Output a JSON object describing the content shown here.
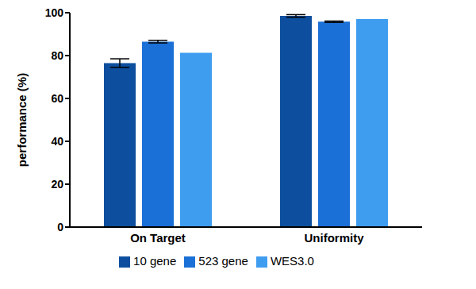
{
  "chart_data": {
    "type": "bar",
    "y_label": "performance  (%)",
    "categories": [
      "On Target",
      "Uniformity"
    ],
    "ylim": [
      0,
      100
    ],
    "yticks": [
      0,
      20,
      40,
      60,
      80,
      100
    ],
    "grid": false,
    "legend": "bottom",
    "series": [
      {
        "name": "10 gene",
        "color": "#0d4f9e",
        "values": [
          76.5,
          98.5
        ],
        "errors": [
          2,
          0.6
        ]
      },
      {
        "name": "523 gene",
        "color": "#1a70d6",
        "values": [
          86.5,
          95.8
        ],
        "errors": [
          0.6,
          0.3
        ]
      },
      {
        "name": "WES3.0",
        "color": "#3f9df0",
        "values": [
          81.3,
          97.0
        ]
      }
    ]
  }
}
